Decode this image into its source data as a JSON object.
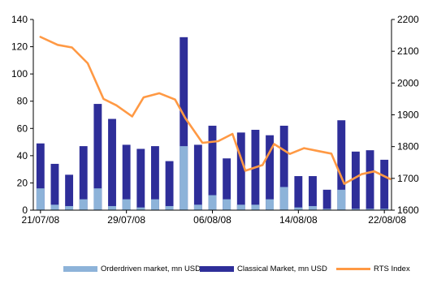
{
  "chart_data": {
    "type": "bar+line",
    "x_tick_labels": [
      "21/07/08",
      "29/07/08",
      "06/08/08",
      "14/08/08",
      "22/08/08"
    ],
    "y_left": {
      "ylim": [
        0,
        140
      ],
      "ticks": [
        "0",
        "20",
        "40",
        "60",
        "80",
        "100",
        "120",
        "140"
      ]
    },
    "y_right": {
      "ylim": [
        1600,
        2200
      ],
      "ticks": [
        "1600",
        "1700",
        "1800",
        "1900",
        "2000",
        "2100",
        "2200"
      ]
    },
    "stacking": "overlay",
    "bar_series": [
      {
        "name": "Orderdriven market, mn USD",
        "color": "#8db3d9",
        "values": [
          16,
          4,
          3,
          8,
          16,
          3,
          8,
          2,
          8,
          3,
          47,
          4,
          11,
          8,
          4,
          4,
          8,
          17,
          2,
          3,
          1,
          15,
          1,
          1,
          1
        ]
      },
      {
        "name": "Classical Market, mn USD",
        "color": "#2e2e99",
        "values": [
          49,
          34,
          26,
          47,
          78,
          67,
          48,
          45,
          47,
          36,
          127,
          48,
          62,
          38,
          57,
          59,
          55,
          62,
          25,
          25,
          15,
          66,
          43,
          44,
          37
        ]
      }
    ],
    "line_series": {
      "name": "RTS Index",
      "color": "#ff9944",
      "axis": "right",
      "points": [
        [
          0,
          2145
        ],
        [
          1.2,
          2120
        ],
        [
          2.2,
          2112
        ],
        [
          3.3,
          2062
        ],
        [
          4.4,
          1950
        ],
        [
          5.3,
          1930
        ],
        [
          6.4,
          1895
        ],
        [
          7.2,
          1955
        ],
        [
          8.3,
          1968
        ],
        [
          9.4,
          1948
        ],
        [
          10.1,
          1890
        ],
        [
          11.3,
          1812
        ],
        [
          12.4,
          1817
        ],
        [
          13.4,
          1840
        ],
        [
          14.3,
          1724
        ],
        [
          15.5,
          1742
        ],
        [
          16.3,
          1808
        ],
        [
          17.4,
          1777
        ],
        [
          18.4,
          1795
        ],
        [
          19.4,
          1786
        ],
        [
          20.3,
          1778
        ],
        [
          21.2,
          1683
        ],
        [
          22.4,
          1713
        ],
        [
          23.3,
          1722
        ],
        [
          24.4,
          1698
        ]
      ]
    }
  }
}
